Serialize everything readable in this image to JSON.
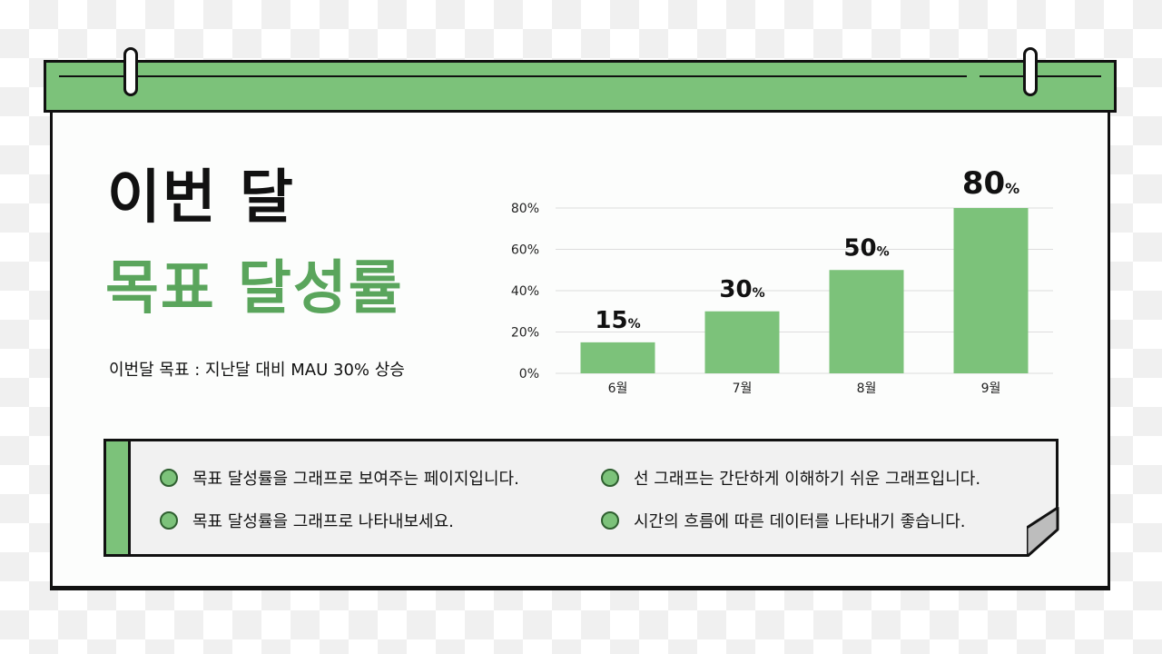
{
  "colors": {
    "accent": "#7cc27a",
    "accent_dark": "#5aa55c",
    "ink": "#111111",
    "card_bg": "#fcfdfc",
    "note_bg": "#f1f1f1"
  },
  "title": {
    "line1": "이번 달",
    "line2": "목표 달성률"
  },
  "subtitle": "이번달 목표 : 지난달 대비 MAU 30% 상승",
  "chart_data": {
    "type": "bar",
    "categories": [
      "6월",
      "7월",
      "8월",
      "9월"
    ],
    "values": [
      15,
      30,
      50,
      80
    ],
    "value_labels": [
      {
        "num": "15",
        "unit": "%"
      },
      {
        "num": "30",
        "unit": "%"
      },
      {
        "num": "50",
        "unit": "%"
      },
      {
        "num": "80",
        "unit": "%"
      }
    ],
    "y_ticks": [
      "0%",
      "20%",
      "40%",
      "60%",
      "80%"
    ],
    "ylim": [
      0,
      80
    ],
    "grid": true,
    "title": "",
    "xlabel": "",
    "ylabel": ""
  },
  "notes": {
    "left": [
      "목표 달성률을 그래프로 보여주는 페이지입니다.",
      "목표 달성률을 그래프로 나타내보세요."
    ],
    "right": [
      "선 그래프는 간단하게 이해하기 쉬운 그래프입니다.",
      "시간의 흐름에 따른 데이터를 나타내기 좋습니다."
    ]
  }
}
